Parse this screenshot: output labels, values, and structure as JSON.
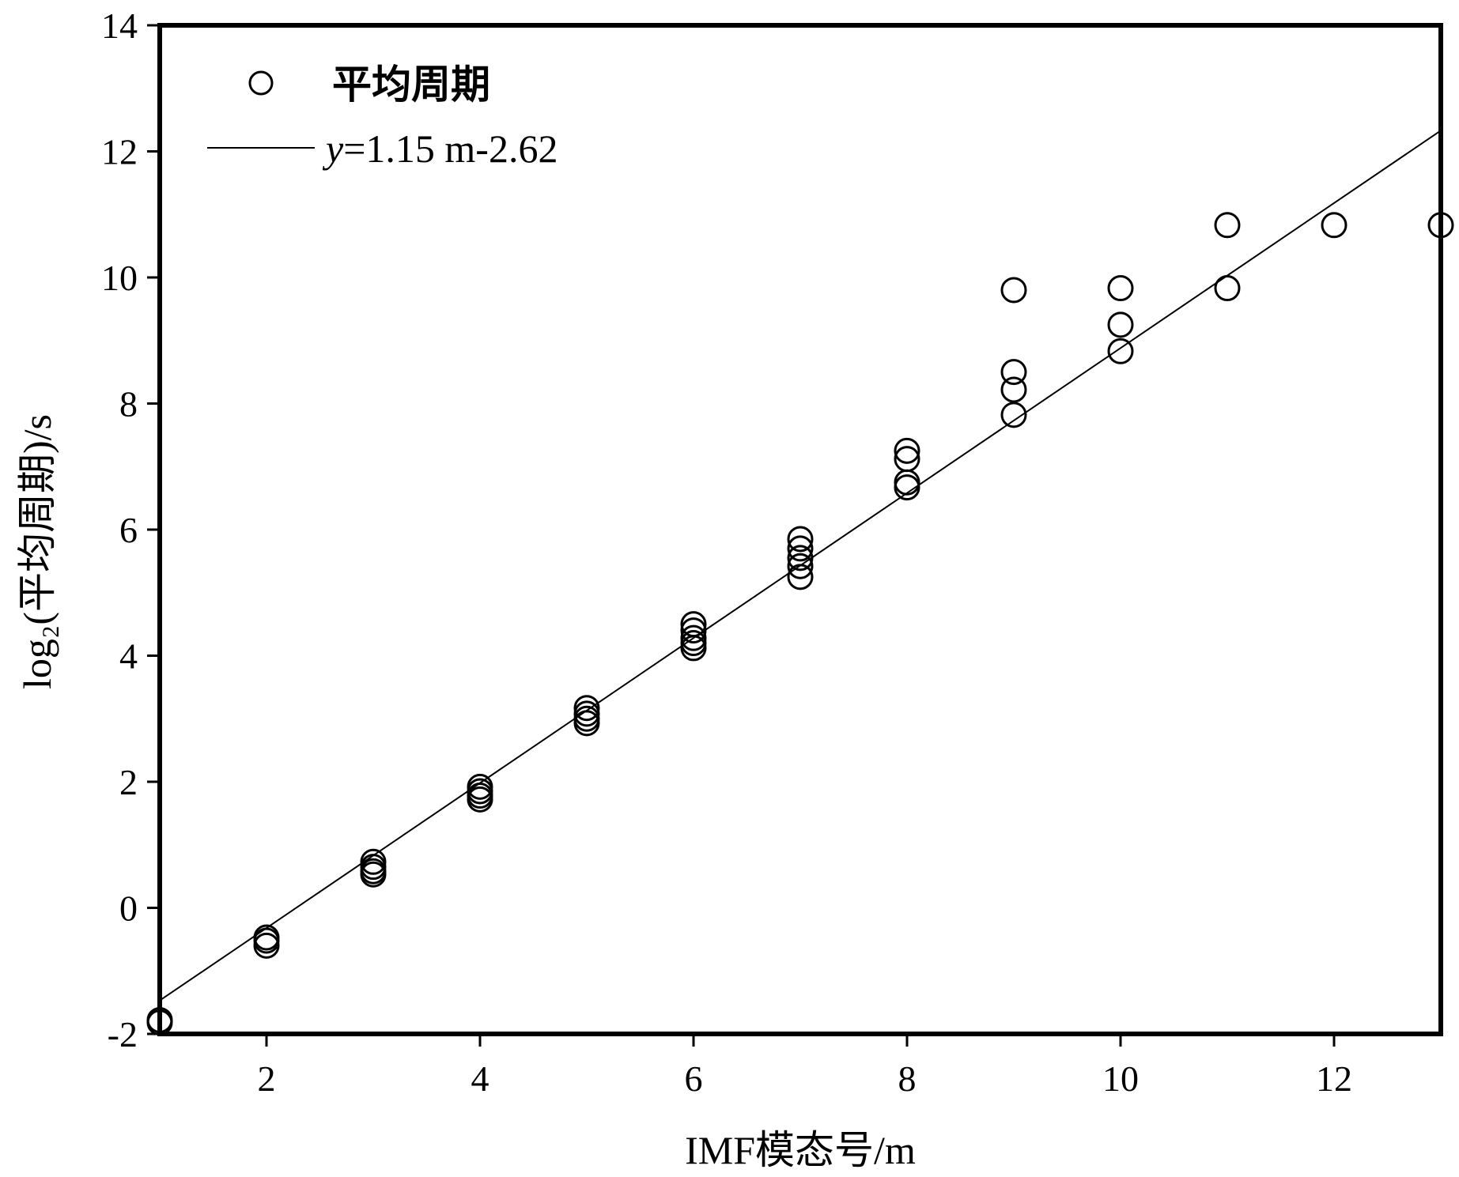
{
  "chart_data": {
    "type": "scatter",
    "xlabel": "IMF模态号/m",
    "ylabel": "log₂(平均周期)/s",
    "xlim": [
      1,
      13
    ],
    "ylim": [
      -2,
      14
    ],
    "xticks": [
      2,
      4,
      6,
      8,
      10,
      12
    ],
    "yticks": [
      -2,
      0,
      2,
      4,
      6,
      8,
      10,
      12,
      14
    ],
    "grid": false,
    "legend_position": "top-left",
    "series": [
      {
        "name": "平均周期",
        "kind": "scatter",
        "marker": "open-circle",
        "points": [
          [
            1,
            -1.78
          ],
          [
            1,
            -1.82
          ],
          [
            2,
            -0.47
          ],
          [
            2,
            -0.52
          ],
          [
            2,
            -0.6
          ],
          [
            3,
            0.73
          ],
          [
            3,
            0.65
          ],
          [
            3,
            0.58
          ],
          [
            3,
            0.53
          ],
          [
            4,
            1.92
          ],
          [
            4,
            1.85
          ],
          [
            4,
            1.78
          ],
          [
            4,
            1.72
          ],
          [
            5,
            3.17
          ],
          [
            5,
            3.08
          ],
          [
            5,
            3.0
          ],
          [
            5,
            2.93
          ],
          [
            6,
            4.5
          ],
          [
            6,
            4.4
          ],
          [
            6,
            4.28
          ],
          [
            6,
            4.2
          ],
          [
            6,
            4.12
          ],
          [
            7,
            5.85
          ],
          [
            7,
            5.7
          ],
          [
            7,
            5.55
          ],
          [
            7,
            5.42
          ],
          [
            7,
            5.25
          ],
          [
            8,
            7.25
          ],
          [
            8,
            7.12
          ],
          [
            8,
            6.75
          ],
          [
            8,
            6.67
          ],
          [
            9,
            9.8
          ],
          [
            9,
            8.5
          ],
          [
            9,
            8.22
          ],
          [
            9,
            7.82
          ],
          [
            10,
            9.83
          ],
          [
            10,
            9.25
          ],
          [
            10,
            8.83
          ],
          [
            11,
            10.83
          ],
          [
            11,
            9.83
          ],
          [
            12,
            10.83
          ],
          [
            13,
            10.83
          ]
        ]
      },
      {
        "name": "y=1.15 m-2.62",
        "kind": "line",
        "slope": 1.15,
        "intercept": -2.62
      }
    ],
    "legend": {
      "entries": [
        {
          "label": "平均周期"
        },
        {
          "label_italic": "y",
          "label_rest": "=1.15 m-2.62"
        }
      ]
    }
  }
}
